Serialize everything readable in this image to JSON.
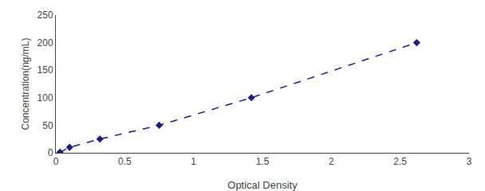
{
  "chart_data": {
    "type": "line",
    "x": [
      0.03,
      0.1,
      0.32,
      0.75,
      1.42,
      2.62
    ],
    "series": [
      {
        "values": [
          1,
          10,
          25,
          50,
          100,
          200
        ],
        "color": "#1a1a8c",
        "marker": "diamond",
        "line_style": "dashed"
      }
    ],
    "xlabel": "Optical Density",
    "ylabel": "Concentration(ng/mL)",
    "xlim": [
      0,
      3
    ],
    "ylim": [
      0,
      250
    ],
    "xticks": [
      0,
      0.5,
      1,
      1.5,
      2,
      2.5,
      3
    ],
    "yticks": [
      0,
      50,
      100,
      150,
      200,
      250
    ],
    "grid": false
  }
}
